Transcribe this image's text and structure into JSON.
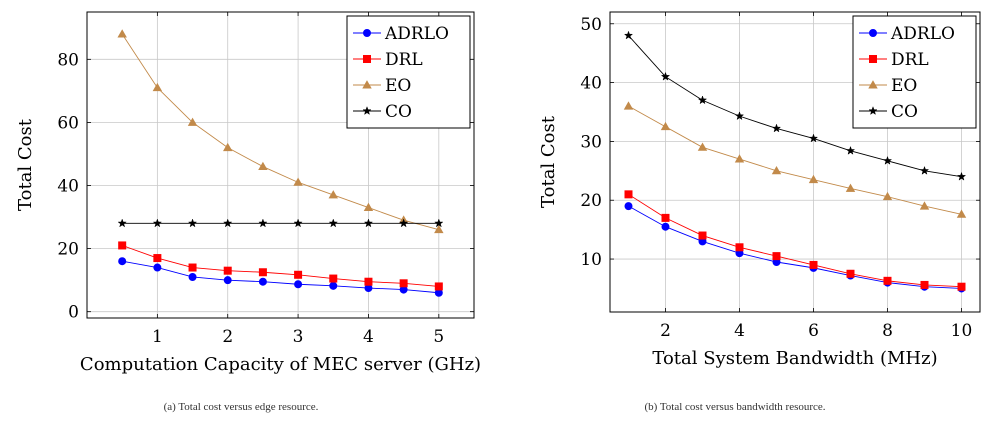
{
  "colors": {
    "ADRLO": "#0000ff",
    "DRL": "#ff0000",
    "EO": "#c28a4a",
    "CO": "#000000",
    "grid": "#c8c8c8",
    "axis": "#000000"
  },
  "chart_data": [
    {
      "type": "line",
      "xlabel": "Computation Capacity of MEC server (GHz)",
      "ylabel": "Total Cost",
      "caption": "(a) Total cost versus edge resource.",
      "xlim": [
        0,
        5.5
      ],
      "ylim": [
        -2,
        95
      ],
      "xticks": [
        1,
        2,
        3,
        4,
        5
      ],
      "yticks": [
        0,
        20,
        40,
        60,
        80
      ],
      "grid": true,
      "legend": "top-right",
      "x": [
        0.5,
        1.0,
        1.5,
        2.0,
        2.5,
        3.0,
        3.5,
        4.0,
        4.5,
        5.0
      ],
      "series": [
        {
          "name": "ADRLO",
          "marker": "circle",
          "values": [
            16,
            14,
            11,
            10,
            9.5,
            8.7,
            8.2,
            7.5,
            7.0,
            6.0
          ]
        },
        {
          "name": "DRL",
          "marker": "square",
          "values": [
            21,
            17,
            14,
            13,
            12.5,
            11.7,
            10.5,
            9.5,
            9.0,
            8.0
          ]
        },
        {
          "name": "EO",
          "marker": "triangle",
          "values": [
            88,
            71,
            60,
            52,
            46,
            41,
            37,
            33,
            29,
            26
          ]
        },
        {
          "name": "CO",
          "marker": "star",
          "values": [
            28,
            28,
            28,
            28,
            28,
            28,
            28,
            28,
            28,
            28
          ]
        }
      ]
    },
    {
      "type": "line",
      "xlabel": "Total System Bandwidth (MHz)",
      "ylabel": "Total Cost",
      "caption": "(b) Total cost versus bandwidth resource.",
      "xlim": [
        0.5,
        10.5
      ],
      "ylim": [
        1,
        52
      ],
      "xticks": [
        2,
        4,
        6,
        8,
        10
      ],
      "yticks": [
        10,
        20,
        30,
        40,
        50
      ],
      "grid": true,
      "legend": "top-right",
      "x": [
        1,
        2,
        3,
        4,
        5,
        6,
        7,
        8,
        9,
        10
      ],
      "series": [
        {
          "name": "ADRLO",
          "marker": "circle",
          "values": [
            19,
            15.5,
            13,
            11,
            9.5,
            8.5,
            7.2,
            6.0,
            5.3,
            5.0
          ]
        },
        {
          "name": "DRL",
          "marker": "square",
          "values": [
            21,
            17,
            14,
            12,
            10.5,
            9.0,
            7.5,
            6.3,
            5.6,
            5.3
          ]
        },
        {
          "name": "EO",
          "marker": "triangle",
          "values": [
            36,
            32.5,
            29,
            27,
            25,
            23.5,
            22,
            20.6,
            19,
            17.6
          ]
        },
        {
          "name": "CO",
          "marker": "star",
          "values": [
            48,
            41,
            37,
            34.3,
            32.2,
            30.5,
            28.4,
            26.7,
            25,
            24
          ]
        }
      ]
    }
  ]
}
